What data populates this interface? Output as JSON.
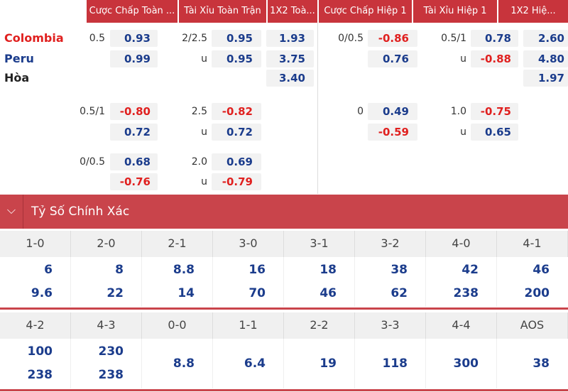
{
  "odds": {
    "headers": [
      "Cược Chấp Toàn ...",
      "Tài Xỉu Toàn Trận",
      "1X2 Toà...",
      "Cược Chấp Hiệp 1",
      "Tài Xỉu Hiệp 1",
      "1X2 Hiệ..."
    ],
    "teams": [
      "Colombia",
      "Peru",
      "Hòa"
    ],
    "blocks": [
      [
        [
          "0.5",
          "0.93",
          "2/2.5",
          "0.95",
          "1.93",
          "0/0.5",
          "-0.86",
          "0.5/1",
          "0.78",
          "2.60"
        ],
        [
          null,
          "0.99",
          "u",
          "0.95",
          "3.75",
          null,
          "0.76",
          "u",
          "-0.88",
          "4.80"
        ],
        [
          null,
          null,
          null,
          null,
          "3.40",
          null,
          null,
          null,
          null,
          "1.97"
        ]
      ],
      [
        [
          "0.5/1",
          "-0.80",
          "2.5",
          "-0.82",
          null,
          "0",
          "0.49",
          "1.0",
          "-0.75",
          null
        ],
        [
          null,
          "0.72",
          "u",
          "0.72",
          null,
          null,
          "-0.59",
          "u",
          "0.65",
          null
        ]
      ],
      [
        [
          "0/0.5",
          "0.68",
          "2.0",
          "0.69",
          null,
          null,
          null,
          null,
          null,
          null
        ],
        [
          null,
          "-0.76",
          "u",
          "-0.79",
          null,
          null,
          null,
          null,
          null,
          null
        ]
      ]
    ]
  },
  "correct_score": {
    "title": "Tỷ Số Chính Xác",
    "groups": [
      [
        {
          "score": "1-0",
          "odds": [
            "6",
            "9.6"
          ]
        },
        {
          "score": "2-0",
          "odds": [
            "8",
            "22"
          ]
        },
        {
          "score": "2-1",
          "odds": [
            "8.8",
            "14"
          ]
        },
        {
          "score": "3-0",
          "odds": [
            "16",
            "70"
          ]
        },
        {
          "score": "3-1",
          "odds": [
            "18",
            "46"
          ]
        },
        {
          "score": "3-2",
          "odds": [
            "38",
            "62"
          ]
        },
        {
          "score": "4-0",
          "odds": [
            "42",
            "238"
          ]
        },
        {
          "score": "4-1",
          "odds": [
            "46",
            "200"
          ]
        }
      ],
      [
        {
          "score": "4-2",
          "odds": [
            "100",
            "238"
          ]
        },
        {
          "score": "4-3",
          "odds": [
            "230",
            "238"
          ]
        },
        {
          "score": "0-0",
          "odds": [
            "8.8"
          ]
        },
        {
          "score": "1-1",
          "odds": [
            "6.4"
          ]
        },
        {
          "score": "2-2",
          "odds": [
            "19"
          ]
        },
        {
          "score": "3-3",
          "odds": [
            "118"
          ]
        },
        {
          "score": "4-4",
          "odds": [
            "300"
          ]
        },
        {
          "score": "AOS",
          "odds": [
            "38"
          ]
        }
      ]
    ]
  }
}
